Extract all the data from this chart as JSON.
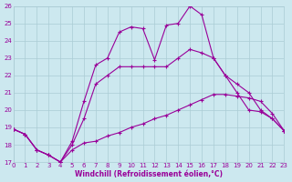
{
  "xlabel": "Windchill (Refroidissement éolien,°C)",
  "background_color": "#cce8ef",
  "grid_color": "#aaccd4",
  "line_color": "#990099",
  "xlim": [
    0,
    23
  ],
  "ylim": [
    17,
    26
  ],
  "yticks": [
    17,
    18,
    19,
    20,
    21,
    22,
    23,
    24,
    25,
    26
  ],
  "xticks": [
    0,
    1,
    2,
    3,
    4,
    5,
    6,
    7,
    8,
    9,
    10,
    11,
    12,
    13,
    14,
    15,
    16,
    17,
    18,
    19,
    20,
    21,
    22,
    23
  ],
  "line1_x": [
    0,
    1,
    2,
    3,
    4,
    5,
    6,
    7,
    8,
    9,
    10,
    11,
    12,
    13,
    14,
    15,
    16,
    17,
    18,
    19,
    20,
    21,
    22,
    23
  ],
  "line1_y": [
    18.9,
    18.6,
    17.7,
    17.4,
    17.0,
    17.7,
    18.1,
    18.2,
    18.5,
    18.7,
    19.0,
    19.2,
    19.5,
    19.7,
    20.0,
    20.3,
    20.6,
    20.9,
    20.9,
    20.8,
    20.7,
    20.5,
    19.8,
    18.8
  ],
  "line2_x": [
    0,
    1,
    2,
    3,
    4,
    5,
    6,
    7,
    8,
    9,
    10,
    11,
    12,
    13,
    14,
    15,
    16,
    17,
    18,
    19,
    20,
    21,
    22,
    23
  ],
  "line2_y": [
    18.9,
    18.6,
    17.7,
    17.4,
    17.0,
    18.0,
    19.5,
    21.5,
    22.0,
    22.5,
    22.5,
    22.5,
    22.5,
    22.5,
    23.0,
    23.5,
    23.3,
    23.0,
    22.0,
    21.5,
    21.0,
    20.0,
    19.5,
    18.8
  ],
  "line3_x": [
    0,
    1,
    2,
    3,
    4,
    5,
    6,
    7,
    8,
    9,
    10,
    11,
    12,
    13,
    14,
    15,
    16,
    17,
    18,
    19,
    20,
    21,
    22,
    23
  ],
  "line3_y": [
    18.9,
    18.6,
    17.7,
    17.4,
    17.0,
    18.2,
    20.5,
    22.6,
    23.0,
    24.5,
    24.8,
    24.7,
    22.9,
    24.9,
    25.0,
    26.0,
    25.5,
    23.0,
    22.0,
    21.0,
    20.0,
    19.9,
    19.5,
    18.8
  ]
}
